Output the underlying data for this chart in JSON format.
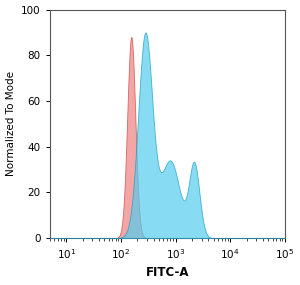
{
  "title": "",
  "xlabel": "FITC-A",
  "ylabel": "Normalized To Mode",
  "xlim": [
    5,
    100000
  ],
  "ylim": [
    0,
    100
  ],
  "yticks": [
    0,
    20,
    40,
    60,
    80,
    100
  ],
  "xtick_vals": [
    10,
    100,
    1000,
    10000,
    100000
  ],
  "red_color": "#F08888",
  "red_edge": "#CC4444",
  "blue_color": "#55CCEE",
  "blue_edge": "#1199BB",
  "red_alpha": 0.75,
  "blue_alpha": 0.7,
  "background": "#ffffff",
  "red_peak_x": 155,
  "red_peak_y": 88,
  "red_sigma": 0.17,
  "blue_peak_x": 280,
  "blue_peak_y": 90,
  "blue_sigma": 0.3,
  "blue_shoulder1_x": 800,
  "blue_shoulder1_amp": 0.38,
  "blue_shoulder1_sigma": 0.4,
  "blue_shoulder2_x": 2200,
  "blue_shoulder2_amp": 0.36,
  "blue_shoulder2_sigma": 0.22,
  "figsize": [
    3.0,
    2.85
  ],
  "dpi": 100
}
